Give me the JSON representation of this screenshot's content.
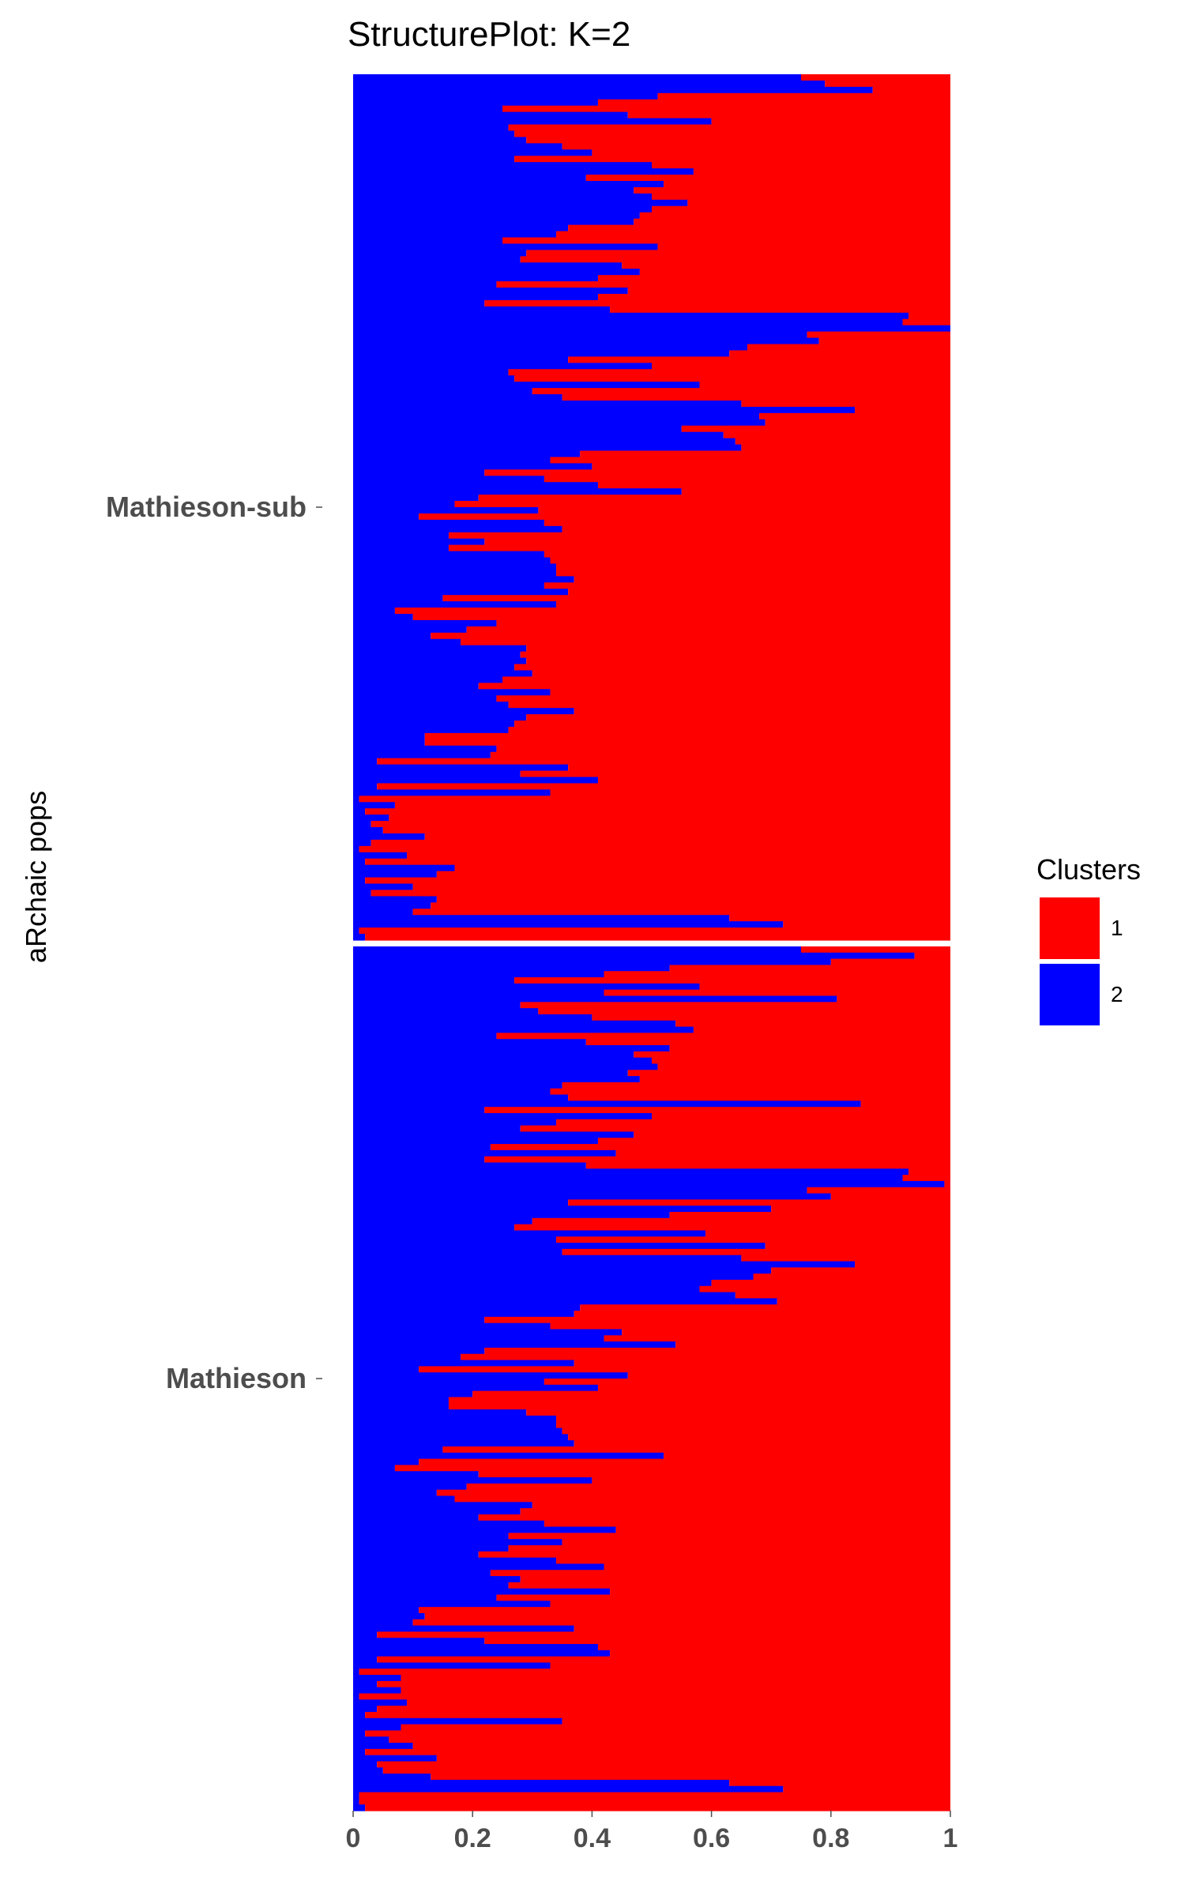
{
  "chart_data": {
    "type": "bar",
    "orientation": "horizontal-stacked",
    "title": "StructurePlot: K=2",
    "ylabel": "aRchaic pops",
    "xlabel": "",
    "xlim": [
      0,
      1
    ],
    "x_ticks": [
      "0",
      "0.2",
      "0.4",
      "0.6",
      "0.8",
      "1"
    ],
    "grid": false,
    "legend": {
      "title": "Clusters",
      "position": "right",
      "entries": [
        {
          "label": "1",
          "color": "#ff0000"
        },
        {
          "label": "2",
          "color": "#0000ff"
        }
      ]
    },
    "panels": [
      {
        "name": "Mathieson-sub",
        "cluster2_share": [
          0.75,
          0.79,
          0.87,
          0.51,
          0.41,
          0.25,
          0.46,
          0.6,
          0.26,
          0.27,
          0.29,
          0.35,
          0.4,
          0.27,
          0.5,
          0.57,
          0.39,
          0.52,
          0.47,
          0.5,
          0.56,
          0.5,
          0.48,
          0.47,
          0.36,
          0.34,
          0.25,
          0.51,
          0.29,
          0.28,
          0.45,
          0.48,
          0.41,
          0.24,
          0.46,
          0.41,
          0.22,
          0.43,
          0.93,
          0.92,
          1.0,
          0.76,
          0.78,
          0.66,
          0.63,
          0.36,
          0.5,
          0.26,
          0.27,
          0.58,
          0.3,
          0.35,
          0.65,
          0.84,
          0.68,
          0.69,
          0.55,
          0.62,
          0.64,
          0.65,
          0.38,
          0.33,
          0.4,
          0.22,
          0.32,
          0.41,
          0.55,
          0.21,
          0.17,
          0.31,
          0.11,
          0.32,
          0.35,
          0.16,
          0.22,
          0.16,
          0.32,
          0.33,
          0.34,
          0.34,
          0.37,
          0.32,
          0.36,
          0.15,
          0.34,
          0.07,
          0.1,
          0.24,
          0.19,
          0.13,
          0.18,
          0.29,
          0.28,
          0.29,
          0.27,
          0.3,
          0.25,
          0.21,
          0.33,
          0.24,
          0.26,
          0.37,
          0.29,
          0.27,
          0.26,
          0.12,
          0.12,
          0.24,
          0.23,
          0.04,
          0.36,
          0.28,
          0.41,
          0.04,
          0.33,
          0.01,
          0.07,
          0.02,
          0.06,
          0.03,
          0.05,
          0.12,
          0.03,
          0.01,
          0.09,
          0.02,
          0.17,
          0.14,
          0.02,
          0.1,
          0.03,
          0.14,
          0.13,
          0.1,
          0.63,
          0.72,
          0.01,
          0.02
        ],
        "cluster1_share_listed_as": "1 - cluster2_share"
      },
      {
        "name": "Mathieson",
        "cluster2_share": [
          0.75,
          0.94,
          0.8,
          0.53,
          0.42,
          0.27,
          0.58,
          0.42,
          0.81,
          0.28,
          0.31,
          0.4,
          0.54,
          0.57,
          0.24,
          0.39,
          0.53,
          0.47,
          0.5,
          0.51,
          0.46,
          0.48,
          0.35,
          0.33,
          0.36,
          0.85,
          0.22,
          0.5,
          0.34,
          0.28,
          0.47,
          0.41,
          0.23,
          0.44,
          0.22,
          0.39,
          0.93,
          0.92,
          0.99,
          0.76,
          0.8,
          0.36,
          0.7,
          0.53,
          0.3,
          0.27,
          0.59,
          0.34,
          0.69,
          0.35,
          0.65,
          0.84,
          0.7,
          0.67,
          0.6,
          0.58,
          0.64,
          0.71,
          0.38,
          0.37,
          0.22,
          0.33,
          0.45,
          0.42,
          0.54,
          0.22,
          0.18,
          0.37,
          0.11,
          0.46,
          0.32,
          0.41,
          0.2,
          0.16,
          0.16,
          0.29,
          0.34,
          0.34,
          0.35,
          0.36,
          0.37,
          0.15,
          0.52,
          0.11,
          0.07,
          0.21,
          0.4,
          0.19,
          0.14,
          0.17,
          0.3,
          0.28,
          0.21,
          0.32,
          0.44,
          0.26,
          0.35,
          0.26,
          0.21,
          0.34,
          0.42,
          0.23,
          0.28,
          0.26,
          0.43,
          0.24,
          0.33,
          0.11,
          0.12,
          0.1,
          0.37,
          0.04,
          0.22,
          0.41,
          0.43,
          0.04,
          0.33,
          0.01,
          0.08,
          0.04,
          0.08,
          0.01,
          0.09,
          0.04,
          0.02,
          0.35,
          0.08,
          0.02,
          0.06,
          0.1,
          0.02,
          0.14,
          0.04,
          0.05,
          0.13,
          0.63,
          0.72,
          0.01,
          0.01,
          0.02
        ]
      }
    ]
  }
}
